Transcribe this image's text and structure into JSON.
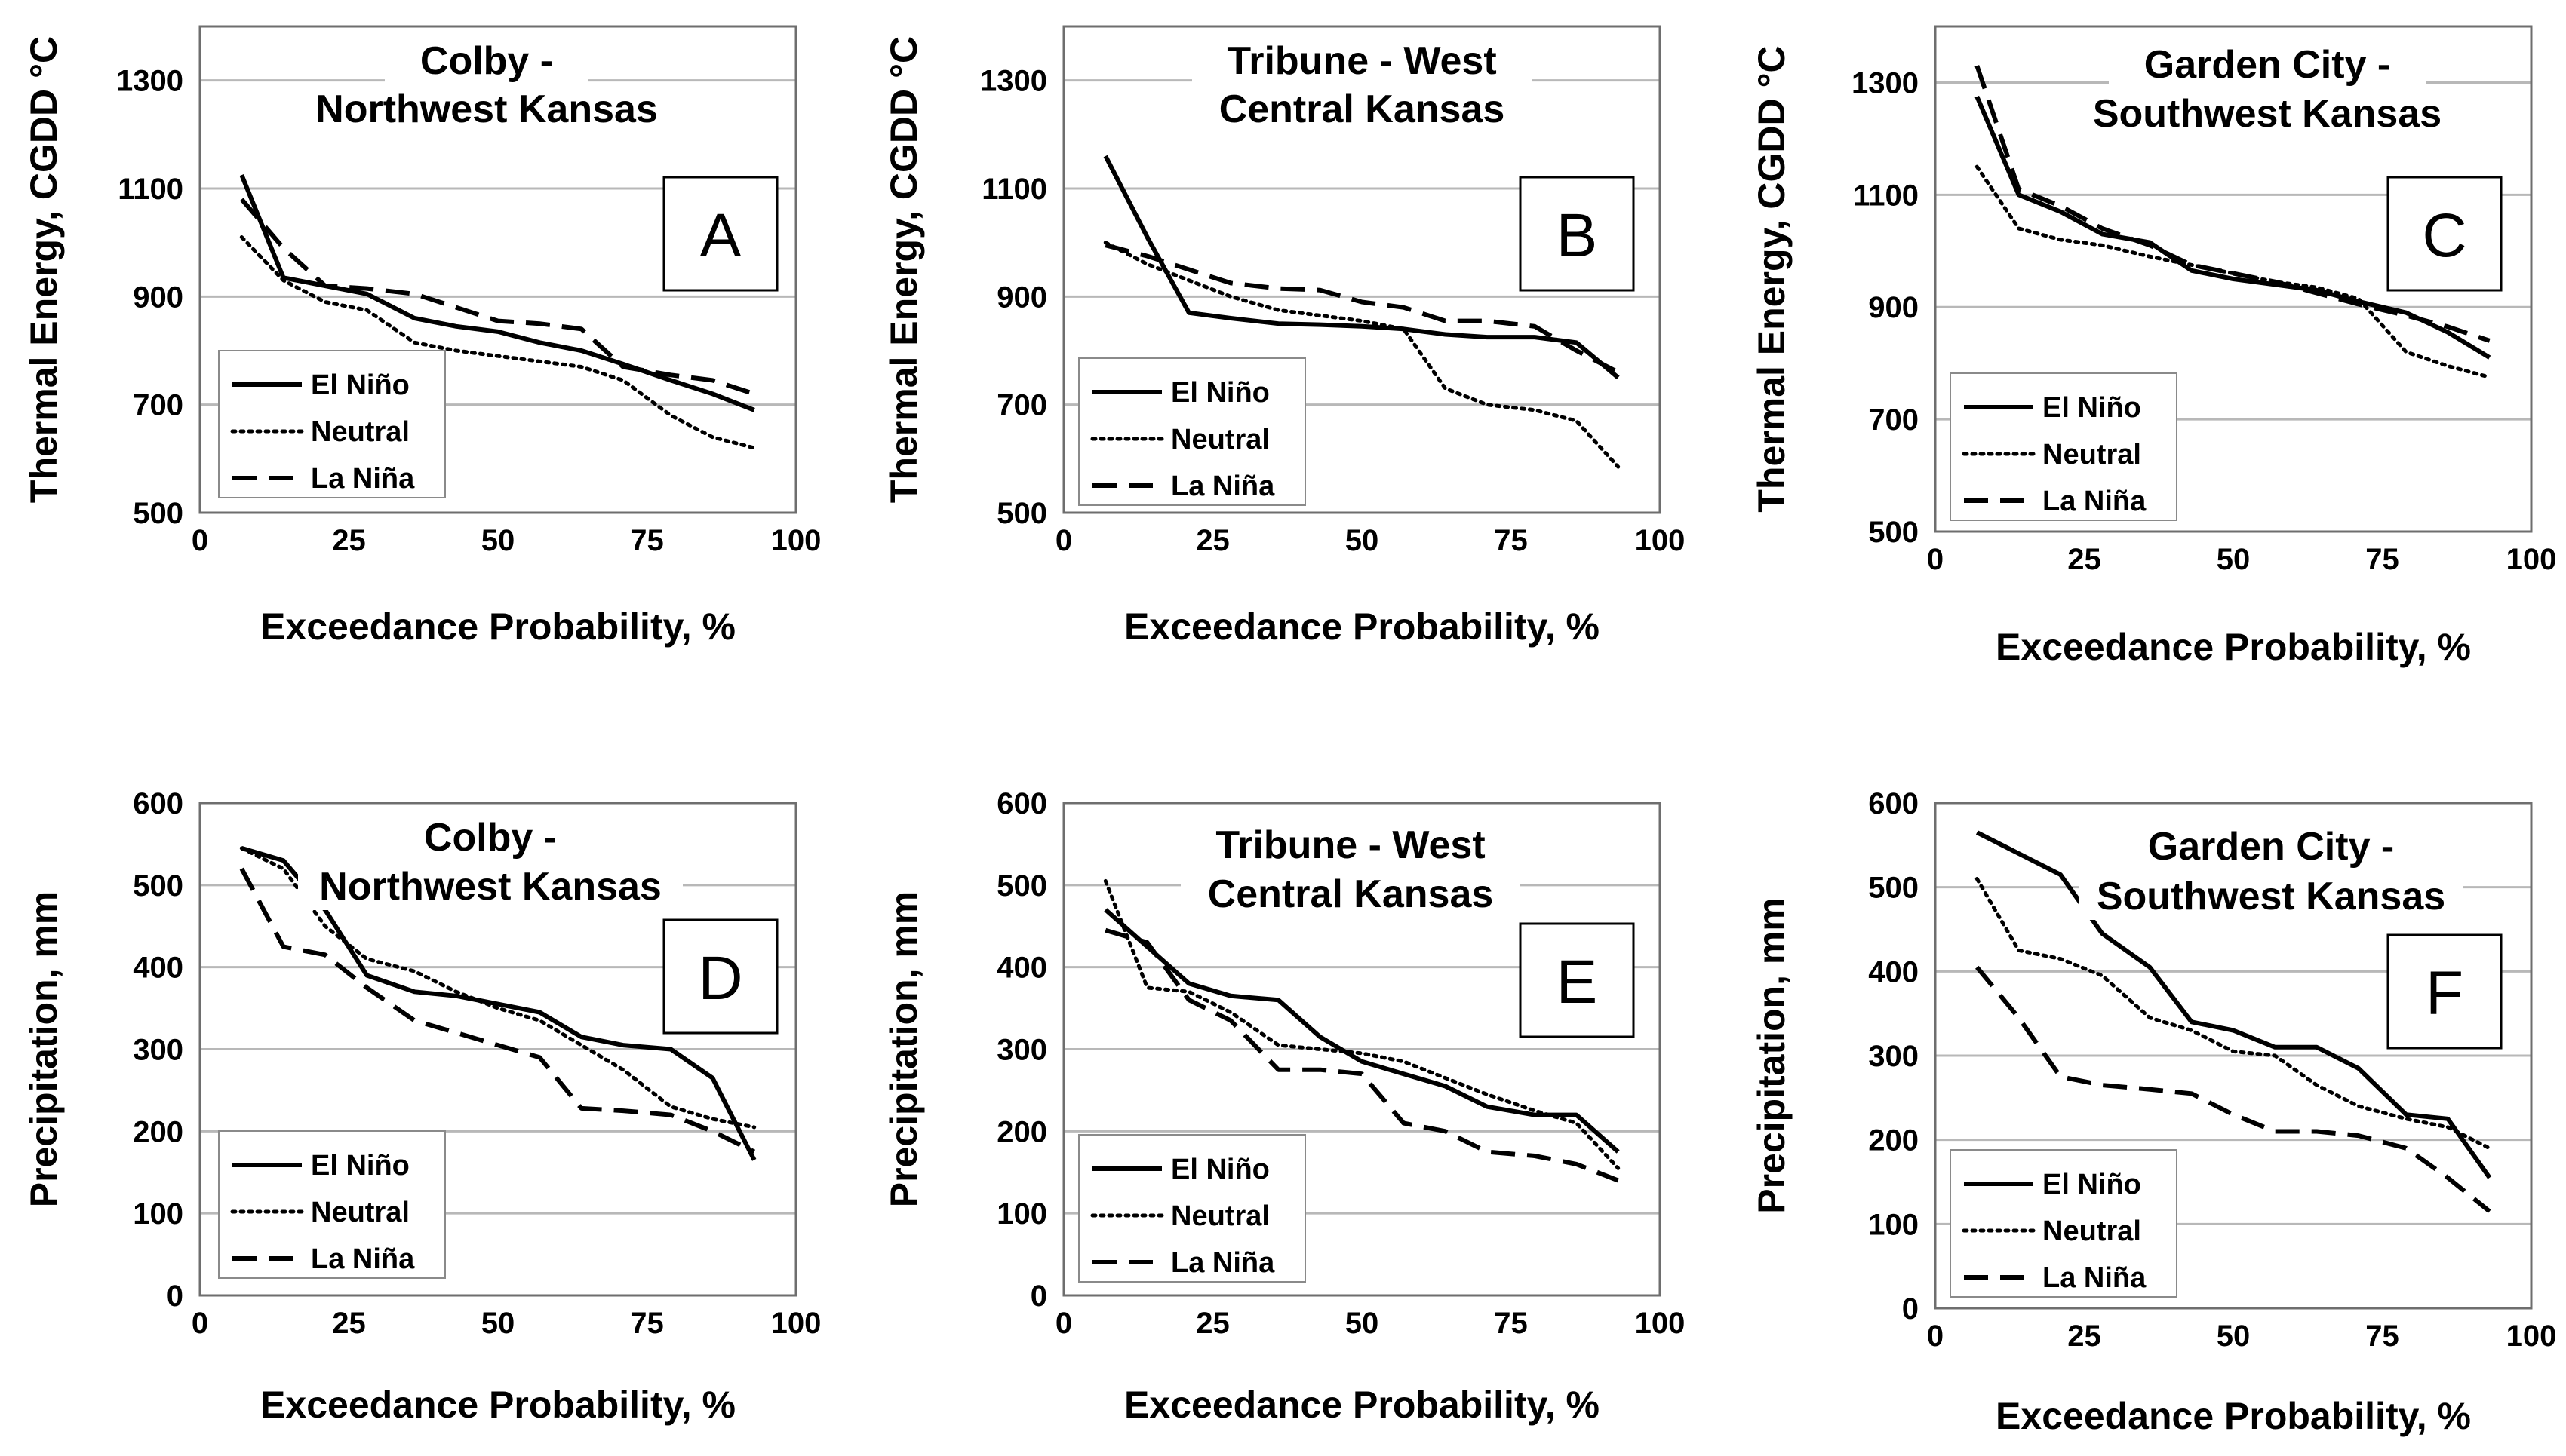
{
  "figure": {
    "legend_entries": [
      "El Niño",
      "Neutral",
      "La Niña"
    ],
    "line_styles": {
      "El Niño": "solid",
      "Neutral": "dotted",
      "La Niña": "dashed"
    },
    "line_color": "#000000",
    "grid_color": "#b8b8b8",
    "frame_color": "#6e6e6e"
  },
  "chart_data": [
    {
      "type": "line",
      "panel": "A",
      "title_lines": [
        "Colby  -",
        "Northwest Kansas"
      ],
      "xlabel": "Exceedance Probability, %",
      "ylabel": "Thermal Energy, CGDD °C",
      "xlim": [
        0,
        100
      ],
      "ylim": [
        500,
        1400
      ],
      "xticks": [
        0,
        25,
        50,
        75,
        100
      ],
      "yticks": [
        500,
        700,
        900,
        1100,
        1300
      ],
      "grid": true,
      "legend": "bottom-left",
      "series": [
        {
          "name": "El Niño",
          "style": "solid",
          "x": [
            7,
            14,
            21,
            28,
            36,
            43,
            50,
            57,
            64,
            71,
            79,
            86,
            93
          ],
          "y": [
            1125,
            935,
            920,
            905,
            860,
            845,
            835,
            815,
            800,
            775,
            745,
            720,
            690
          ]
        },
        {
          "name": "Neutral",
          "style": "dotted",
          "x": [
            7,
            14,
            21,
            28,
            36,
            43,
            50,
            57,
            64,
            71,
            79,
            86,
            93
          ],
          "y": [
            1010,
            930,
            890,
            875,
            815,
            800,
            790,
            780,
            770,
            745,
            680,
            640,
            620
          ]
        },
        {
          "name": "La Niña",
          "style": "dashed",
          "x": [
            7,
            14,
            21,
            28,
            36,
            43,
            50,
            57,
            64,
            71,
            79,
            86,
            93
          ],
          "y": [
            1080,
            990,
            920,
            915,
            905,
            880,
            855,
            850,
            840,
            770,
            755,
            745,
            720
          ]
        }
      ]
    },
    {
      "type": "line",
      "panel": "B",
      "title_lines": [
        "Tribune - West",
        "Central Kansas"
      ],
      "xlabel": "Exceedance Probability, %",
      "ylabel": "Thermal Energy, CGDD °C",
      "xlim": [
        0,
        100
      ],
      "ylim": [
        500,
        1400
      ],
      "xticks": [
        0,
        25,
        50,
        75,
        100
      ],
      "yticks": [
        500,
        700,
        900,
        1100,
        1300
      ],
      "grid": true,
      "legend": "bottom-left",
      "series": [
        {
          "name": "El Niño",
          "style": "solid",
          "x": [
            7,
            14,
            21,
            28,
            36,
            43,
            50,
            57,
            64,
            71,
            79,
            86,
            93
          ],
          "y": [
            1160,
            1010,
            870,
            860,
            850,
            848,
            845,
            840,
            830,
            825,
            825,
            815,
            750
          ]
        },
        {
          "name": "Neutral",
          "style": "dotted",
          "x": [
            7,
            14,
            21,
            28,
            36,
            43,
            50,
            57,
            64,
            71,
            79,
            86,
            93
          ],
          "y": [
            1000,
            960,
            930,
            900,
            875,
            865,
            855,
            840,
            730,
            700,
            690,
            670,
            585
          ]
        },
        {
          "name": "La Niña",
          "style": "dashed",
          "x": [
            7,
            14,
            21,
            28,
            36,
            43,
            50,
            57,
            64,
            71,
            79,
            86,
            93
          ],
          "y": [
            995,
            975,
            950,
            925,
            915,
            912,
            890,
            880,
            855,
            855,
            845,
            800,
            760
          ]
        }
      ]
    },
    {
      "type": "line",
      "panel": "C",
      "title_lines": [
        "Garden City -",
        "Southwest Kansas"
      ],
      "xlabel": "Exceedance Probability, %",
      "ylabel": "Thermal Energy, CGDD °C",
      "xlim": [
        0,
        100
      ],
      "ylim": [
        500,
        1400
      ],
      "xticks": [
        0,
        25,
        50,
        75,
        100
      ],
      "yticks": [
        500,
        700,
        900,
        1100,
        1300
      ],
      "grid": true,
      "legend": "bottom-left",
      "series": [
        {
          "name": "El Niño",
          "style": "solid",
          "x": [
            7,
            14,
            21,
            28,
            36,
            43,
            50,
            57,
            64,
            71,
            79,
            86,
            93
          ],
          "y": [
            1275,
            1100,
            1070,
            1030,
            1015,
            965,
            950,
            940,
            930,
            910,
            890,
            855,
            810
          ]
        },
        {
          "name": "Neutral",
          "style": "dotted",
          "x": [
            7,
            14,
            21,
            28,
            36,
            43,
            50,
            57,
            64,
            71,
            79,
            86,
            93
          ],
          "y": [
            1150,
            1040,
            1020,
            1010,
            990,
            975,
            960,
            945,
            935,
            915,
            820,
            795,
            775
          ]
        },
        {
          "name": "La Niña",
          "style": "dashed",
          "x": [
            7,
            14,
            21,
            28,
            36,
            43,
            50,
            57,
            64,
            71,
            79,
            86,
            93
          ],
          "y": [
            1330,
            1110,
            1080,
            1040,
            1010,
            975,
            960,
            945,
            925,
            905,
            885,
            865,
            840
          ]
        }
      ]
    },
    {
      "type": "line",
      "panel": "D",
      "title_lines": [
        "Colby  -",
        "Northwest Kansas"
      ],
      "xlabel": "Exceedance Probability, %",
      "ylabel": "Precipitation, mm",
      "xlim": [
        0,
        100
      ],
      "ylim": [
        0,
        600
      ],
      "xticks": [
        0,
        25,
        50,
        75,
        100
      ],
      "yticks": [
        0,
        100,
        200,
        300,
        400,
        500,
        600
      ],
      "grid": true,
      "legend": "bottom-left",
      "series": [
        {
          "name": "El Niño",
          "style": "solid",
          "x": [
            7,
            14,
            21,
            28,
            36,
            43,
            50,
            57,
            64,
            71,
            79,
            86,
            93
          ],
          "y": [
            545,
            530,
            470,
            390,
            370,
            365,
            355,
            345,
            315,
            305,
            300,
            265,
            165
          ]
        },
        {
          "name": "Neutral",
          "style": "dotted",
          "x": [
            7,
            14,
            21,
            28,
            36,
            43,
            50,
            57,
            64,
            71,
            79,
            86,
            93
          ],
          "y": [
            545,
            520,
            450,
            410,
            395,
            370,
            350,
            335,
            305,
            275,
            230,
            215,
            205
          ]
        },
        {
          "name": "La Niña",
          "style": "dashed",
          "x": [
            7,
            14,
            21,
            28,
            36,
            43,
            50,
            57,
            64,
            71,
            79,
            86,
            93
          ],
          "y": [
            520,
            425,
            415,
            375,
            335,
            320,
            305,
            290,
            228,
            225,
            220,
            200,
            175
          ]
        }
      ]
    },
    {
      "type": "line",
      "panel": "E",
      "title_lines": [
        "Tribune - West",
        "Central Kansas"
      ],
      "xlabel": "Exceedance Probability, %",
      "ylabel": "Precipitation, mm",
      "xlim": [
        0,
        100
      ],
      "ylim": [
        0,
        600
      ],
      "xticks": [
        0,
        25,
        50,
        75,
        100
      ],
      "yticks": [
        0,
        100,
        200,
        300,
        400,
        500,
        600
      ],
      "grid": true,
      "legend": "bottom-left",
      "series": [
        {
          "name": "El Niño",
          "style": "solid",
          "x": [
            7,
            14,
            21,
            28,
            36,
            43,
            50,
            57,
            64,
            71,
            79,
            86,
            93
          ],
          "y": [
            470,
            425,
            380,
            365,
            360,
            315,
            285,
            270,
            255,
            230,
            220,
            220,
            175
          ]
        },
        {
          "name": "Neutral",
          "style": "dotted",
          "x": [
            7,
            14,
            21,
            28,
            36,
            43,
            50,
            57,
            64,
            71,
            79,
            86,
            93
          ],
          "y": [
            505,
            375,
            370,
            345,
            305,
            300,
            295,
            285,
            265,
            245,
            225,
            210,
            155
          ]
        },
        {
          "name": "La Niña",
          "style": "dashed",
          "x": [
            7,
            14,
            21,
            28,
            36,
            43,
            50,
            57,
            64,
            71,
            79,
            86,
            93
          ],
          "y": [
            445,
            430,
            360,
            335,
            275,
            275,
            270,
            210,
            200,
            175,
            170,
            160,
            140
          ]
        }
      ]
    },
    {
      "type": "line",
      "panel": "F",
      "title_lines": [
        "Garden City -",
        "Southwest Kansas"
      ],
      "xlabel": "Exceedance Probability, %",
      "ylabel": "Precipitation, mm",
      "xlim": [
        0,
        100
      ],
      "ylim": [
        0,
        600
      ],
      "xticks": [
        0,
        25,
        50,
        75,
        100
      ],
      "yticks": [
        0,
        100,
        200,
        300,
        400,
        500,
        600
      ],
      "grid": true,
      "legend": "bottom-left",
      "series": [
        {
          "name": "El Niño",
          "style": "solid",
          "x": [
            7,
            14,
            21,
            28,
            36,
            43,
            50,
            57,
            64,
            71,
            79,
            86,
            93
          ],
          "y": [
            565,
            540,
            515,
            445,
            405,
            340,
            330,
            310,
            310,
            285,
            230,
            225,
            155
          ]
        },
        {
          "name": "Neutral",
          "style": "dotted",
          "x": [
            7,
            14,
            21,
            28,
            36,
            43,
            50,
            57,
            64,
            71,
            79,
            86,
            93
          ],
          "y": [
            510,
            425,
            415,
            395,
            345,
            330,
            305,
            300,
            265,
            240,
            225,
            215,
            190
          ]
        },
        {
          "name": "La Niña",
          "style": "dashed",
          "x": [
            7,
            14,
            21,
            28,
            36,
            43,
            50,
            57,
            64,
            71,
            79,
            86,
            93
          ],
          "y": [
            405,
            345,
            275,
            265,
            260,
            255,
            230,
            210,
            210,
            205,
            190,
            155,
            115
          ]
        }
      ]
    }
  ]
}
